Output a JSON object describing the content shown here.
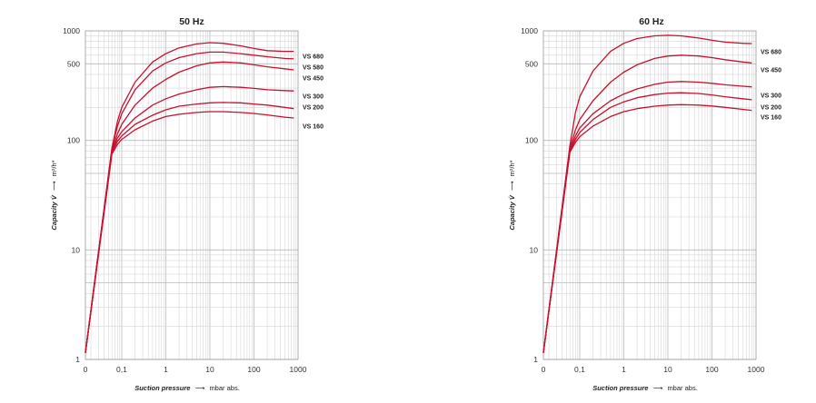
{
  "chart_data": [
    {
      "type": "line",
      "title": "50 Hz",
      "xlabel": "Suction pressure",
      "xunit": "mbar abs.",
      "ylabel": "Capacity V̇",
      "yunit": "m³/h*",
      "x_scale": "log",
      "y_scale": "log",
      "xlim": [
        0.04,
        1000
      ],
      "ylim": [
        1,
        1000
      ],
      "x_ticks": [
        "0",
        "0,1",
        "1",
        "10",
        "100",
        "1000"
      ],
      "y_ticks": [
        "1",
        "10",
        "100",
        "500",
        "1000"
      ],
      "grid": true,
      "series": [
        {
          "name": "VS 680",
          "color": "#c8102e",
          "x": [
            0.06,
            0.08,
            0.1,
            0.2,
            0.5,
            1,
            2,
            5,
            10,
            20,
            50,
            100,
            200,
            500,
            800
          ],
          "y": [
            85,
            150,
            200,
            340,
            520,
            620,
            700,
            760,
            780,
            770,
            730,
            690,
            660,
            650,
            650
          ]
        },
        {
          "name": "VS 580",
          "color": "#c8102e",
          "x": [
            0.06,
            0.08,
            0.1,
            0.2,
            0.5,
            1,
            2,
            5,
            10,
            20,
            50,
            100,
            200,
            500,
            800
          ],
          "y": [
            85,
            135,
            175,
            290,
            430,
            510,
            570,
            620,
            640,
            640,
            620,
            600,
            580,
            560,
            555
          ]
        },
        {
          "name": "VS 450",
          "color": "#c8102e",
          "x": [
            0.06,
            0.08,
            0.1,
            0.2,
            0.5,
            1,
            2,
            5,
            10,
            20,
            50,
            100,
            200,
            500,
            800
          ],
          "y": [
            82,
            115,
            140,
            210,
            300,
            360,
            420,
            480,
            510,
            520,
            510,
            490,
            470,
            450,
            440
          ]
        },
        {
          "name": "VS 300",
          "color": "#c8102e",
          "x": [
            0.06,
            0.08,
            0.1,
            0.2,
            0.5,
            1,
            2,
            5,
            10,
            20,
            50,
            100,
            200,
            500,
            800
          ],
          "y": [
            80,
            105,
            120,
            160,
            210,
            240,
            265,
            290,
            305,
            310,
            305,
            298,
            290,
            285,
            283
          ]
        },
        {
          "name": "VS 200",
          "color": "#c8102e",
          "x": [
            0.06,
            0.08,
            0.1,
            0.2,
            0.5,
            1,
            2,
            5,
            10,
            20,
            50,
            100,
            200,
            500,
            800
          ],
          "y": [
            78,
            98,
            110,
            140,
            170,
            190,
            205,
            215,
            220,
            222,
            220,
            215,
            210,
            200,
            195
          ]
        },
        {
          "name": "VS 160",
          "color": "#c8102e",
          "x": [
            0.06,
            0.08,
            0.1,
            0.2,
            0.5,
            1,
            2,
            5,
            10,
            20,
            50,
            100,
            200,
            500,
            800
          ],
          "y": [
            75,
            92,
            102,
            125,
            150,
            165,
            173,
            180,
            183,
            183,
            180,
            176,
            171,
            163,
            160
          ]
        }
      ],
      "steep_start": {
        "x": 0.015,
        "y": 1.15
      }
    },
    {
      "type": "line",
      "title": "60 Hz",
      "xlabel": "Suction pressure",
      "xunit": "mbar abs.",
      "ylabel": "Capacity V̇",
      "yunit": "m³/h*",
      "x_scale": "log",
      "y_scale": "log",
      "xlim": [
        0.04,
        1000
      ],
      "ylim": [
        1,
        1000
      ],
      "x_ticks": [
        "0",
        "0,1",
        "1",
        "10",
        "100",
        "1000"
      ],
      "y_ticks": [
        "1",
        "10",
        "100",
        "500",
        "1000"
      ],
      "grid": true,
      "series": [
        {
          "name": "VS 680",
          "color": "#c8102e",
          "x": [
            0.06,
            0.08,
            0.1,
            0.2,
            0.5,
            1,
            2,
            5,
            10,
            20,
            50,
            100,
            200,
            500,
            800
          ],
          "y": [
            90,
            180,
            250,
            430,
            650,
            770,
            850,
            900,
            910,
            900,
            860,
            820,
            790,
            770,
            765
          ]
        },
        {
          "name": "VS 450",
          "color": "#c8102e",
          "x": [
            0.06,
            0.08,
            0.1,
            0.2,
            0.5,
            1,
            2,
            5,
            10,
            20,
            50,
            100,
            200,
            500,
            800
          ],
          "y": [
            85,
            125,
            155,
            230,
            340,
            420,
            490,
            560,
            590,
            600,
            590,
            570,
            545,
            520,
            510
          ]
        },
        {
          "name": "VS 300",
          "color": "#c8102e",
          "x": [
            0.06,
            0.08,
            0.1,
            0.2,
            0.5,
            1,
            2,
            5,
            10,
            20,
            50,
            100,
            200,
            500,
            800
          ],
          "y": [
            82,
            110,
            130,
            175,
            230,
            265,
            295,
            325,
            340,
            345,
            340,
            332,
            322,
            312,
            308
          ]
        },
        {
          "name": "VS 200",
          "color": "#c8102e",
          "x": [
            0.06,
            0.08,
            0.1,
            0.2,
            0.5,
            1,
            2,
            5,
            10,
            20,
            50,
            100,
            200,
            500,
            800
          ],
          "y": [
            80,
            102,
            118,
            155,
            200,
            225,
            245,
            262,
            270,
            272,
            268,
            260,
            250,
            240,
            235
          ]
        },
        {
          "name": "VS 160",
          "color": "#c8102e",
          "x": [
            0.06,
            0.08,
            0.1,
            0.2,
            0.5,
            1,
            2,
            5,
            10,
            20,
            50,
            100,
            200,
            500,
            800
          ],
          "y": [
            78,
            96,
            108,
            135,
            165,
            183,
            195,
            205,
            210,
            212,
            210,
            206,
            200,
            192,
            188
          ]
        }
      ],
      "steep_start": {
        "x": 0.015,
        "y": 1.15
      }
    }
  ]
}
